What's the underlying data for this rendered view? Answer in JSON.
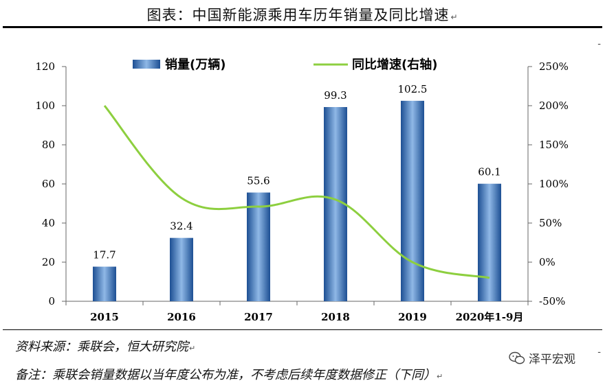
{
  "title": "图表：中国新能源乘用车历年销量及同比增速",
  "title_mark": "↵",
  "chart_data": {
    "type": "bar",
    "categories": [
      "2015",
      "2016",
      "2017",
      "2018",
      "2019",
      "2020年1-9月"
    ],
    "series": [
      {
        "name": "销量(万辆)",
        "type": "bar",
        "axis": "left",
        "values": [
          17.7,
          32.4,
          55.6,
          99.3,
          102.5,
          60.1
        ],
        "color": "#2e6db4"
      },
      {
        "name": "同比增速(右轴)",
        "type": "line",
        "axis": "right",
        "values": [
          200,
          82,
          71,
          80,
          0,
          -20
        ],
        "unit": "%",
        "color": "#8dcf3f"
      }
    ],
    "data_labels": [
      "17.7",
      "32.4",
      "55.6",
      "99.3",
      "102.5",
      "60.1"
    ],
    "y_left": {
      "min": 0,
      "max": 120,
      "ticks": [
        0,
        20,
        40,
        60,
        80,
        100,
        120
      ]
    },
    "y_right": {
      "min": -50,
      "max": 250,
      "ticks": [
        -50,
        0,
        50,
        100,
        150,
        200,
        250
      ],
      "tick_labels": [
        "-50%",
        "0%",
        "50%",
        "100%",
        "150%",
        "200%",
        "250%"
      ]
    },
    "legend": {
      "bar_label": "销量(万辆)",
      "line_label": "同比增速(右轴)",
      "position": "top"
    },
    "grid": false
  },
  "footer": {
    "source": "资料来源：乘联会，恒大研究院",
    "note": "备注：乘联会销量数据以当年度公布为准，不考虑后续年度数据修正（下同）",
    "mark": "↵"
  },
  "watermark": "泽平宏观",
  "colors": {
    "bar_dark": "#1d4f93",
    "bar_light": "#8fb8e6",
    "line": "#8dcf3f",
    "axis": "#666666"
  }
}
